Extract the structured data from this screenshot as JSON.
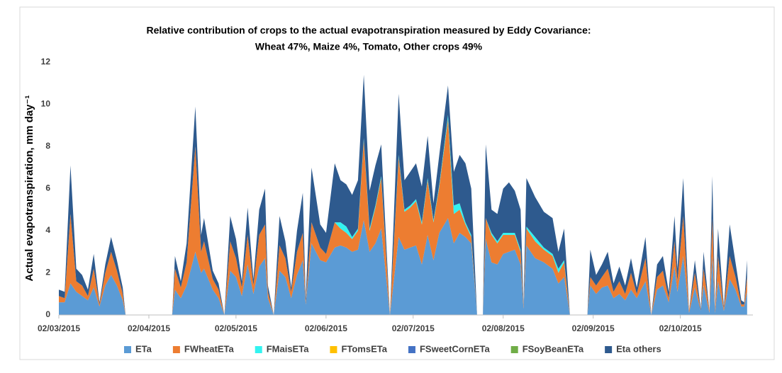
{
  "chart_data": {
    "type": "stacked_area",
    "title": "Relative contribution of crops to the actual evapotranspiration measured by Eddy Covariance:",
    "subtitle": "Wheat 47%, Maize 4%, Tomato, Other crops 49%",
    "ylabel": "Actual evapotranspiration, mm day⁻¹",
    "x": [
      "02/03/2015",
      "04/03/2015",
      "06/03/2015",
      "08/03/2015",
      "10/03/2015",
      "12/03/2015",
      "14/03/2015",
      "16/03/2015",
      "18/03/2015",
      "20/03/2015",
      "22/03/2015",
      "24/03/2015",
      "25/03/2015",
      "10/04/2015",
      "11/04/2015",
      "13/04/2015",
      "15/04/2015",
      "18/04/2015",
      "20/04/2015",
      "21/04/2015",
      "24/04/2015",
      "26/04/2015",
      "28/04/2015",
      "30/04/2015",
      "02/05/2015",
      "04/05/2015",
      "06/05/2015",
      "08/05/2015",
      "10/05/2015",
      "12/05/2015",
      "13/05/2015",
      "15/05/2015",
      "17/05/2015",
      "19/05/2015",
      "21/05/2015",
      "23/05/2015",
      "25/05/2015",
      "26/05/2015",
      "28/05/2015",
      "31/05/2015",
      "02/06/2015",
      "05/06/2015",
      "07/06/2015",
      "09/06/2015",
      "11/06/2015",
      "13/06/2015",
      "15/06/2015",
      "17/06/2015",
      "19/06/2015",
      "21/06/2015",
      "24/06/2015",
      "27/06/2015",
      "29/06/2015",
      "01/07/2015",
      "03/07/2015",
      "05/07/2015",
      "07/07/2015",
      "09/07/2015",
      "11/07/2015",
      "14/07/2015",
      "16/07/2015",
      "18/07/2015",
      "20/07/2015",
      "22/07/2015",
      "24/07/2015",
      "26/07/2015",
      "27/07/2015",
      "29/07/2015",
      "31/07/2015",
      "02/08/2015",
      "04/08/2015",
      "06/08/2015",
      "08/08/2015",
      "09/08/2015",
      "10/08/2015",
      "13/08/2015",
      "16/08/2015",
      "19/08/2015",
      "21/08/2015",
      "23/08/2015",
      "25/08/2015",
      "31/08/2015",
      "01/09/2015",
      "03/09/2015",
      "05/09/2015",
      "07/09/2015",
      "09/09/2015",
      "11/09/2015",
      "13/09/2015",
      "15/09/2015",
      "17/09/2015",
      "20/09/2015",
      "22/09/2015",
      "24/09/2015",
      "26/09/2015",
      "28/09/2015",
      "30/09/2015",
      "01/10/2015",
      "03/10/2015",
      "05/10/2015",
      "07/10/2015",
      "09/10/2015",
      "10/10/2015",
      "12/10/2015",
      "13/10/2015",
      "14/10/2015",
      "15/10/2015",
      "17/10/2015",
      "19/10/2015",
      "21/10/2015",
      "23/10/2015",
      "24/10/2015",
      "25/10/2015"
    ],
    "series": [
      {
        "name": "ETa",
        "color": "#5b9bd5",
        "values": [
          0.6,
          0.6,
          1.5,
          1.1,
          0.9,
          0.7,
          1.3,
          0.4,
          1.4,
          1.9,
          1.4,
          0.7,
          0,
          0,
          1.2,
          0.8,
          1.4,
          3.0,
          2.0,
          2.2,
          1.2,
          0.8,
          0,
          2.1,
          1.8,
          0.9,
          2.4,
          1.0,
          2.3,
          2.7,
          0.8,
          0,
          2.1,
          1.8,
          0.8,
          1.9,
          2.6,
          0.5,
          3.4,
          2.6,
          2.5,
          3.2,
          3.3,
          3.2,
          3.0,
          3.1,
          4.5,
          3.0,
          3.4,
          4.1,
          0,
          3.7,
          3.1,
          3.2,
          3.3,
          2.4,
          3.8,
          2.6,
          3.9,
          4.6,
          3.4,
          3.9,
          3.7,
          3.4,
          0,
          0,
          3.6,
          2.5,
          2.4,
          2.9,
          3.0,
          3.1,
          2.4,
          0.3,
          3.3,
          2.7,
          2.5,
          2.2,
          1.5,
          1.8,
          0,
          0,
          1.4,
          1.0,
          1.3,
          1.4,
          0.8,
          1.0,
          0.7,
          1.2,
          0.8,
          1.6,
          0,
          1.2,
          1.4,
          0.6,
          2.3,
          1.1,
          2.8,
          0.1,
          1.3,
          0.2,
          1.4,
          0.1,
          2.8,
          0.1,
          1.6,
          0.2,
          1.7,
          1.2,
          0.4,
          0.4,
          1.1
        ]
      },
      {
        "name": "FWheatETa",
        "color": "#ed7d31",
        "values": [
          0.3,
          0.2,
          3.3,
          0.5,
          0.5,
          0.2,
          0.9,
          0.1,
          0.6,
          1.1,
          0.7,
          0.3,
          0,
          0,
          1.0,
          0.5,
          1.1,
          5.0,
          1.0,
          1.3,
          0.5,
          0.4,
          0,
          1.4,
          0.9,
          0.4,
          1.4,
          0.4,
          1.5,
          1.6,
          0.3,
          0,
          1.2,
          0.9,
          0.3,
          1.1,
          1.3,
          0.1,
          1.0,
          0.6,
          0.4,
          1.2,
          0.8,
          0.7,
          0.6,
          0.9,
          3.8,
          1.0,
          1.7,
          2.4,
          0,
          3.8,
          1.8,
          1.9,
          2.1,
          1.9,
          2.6,
          1.8,
          2.2,
          4.7,
          1.4,
          1.1,
          0.6,
          0.3,
          0,
          0,
          1.0,
          1.3,
          1.0,
          0.9,
          0.8,
          0.7,
          0.6,
          0.1,
          0.8,
          0.8,
          0.6,
          0.6,
          0.5,
          0.7,
          0,
          0,
          0.4,
          0.4,
          0.5,
          0.8,
          0.3,
          0.6,
          0.3,
          0.8,
          0.2,
          1.1,
          0,
          0.6,
          0.7,
          0.2,
          1.2,
          0.5,
          1.9,
          0.1,
          0.7,
          0,
          0.8,
          0.1,
          1.8,
          0.1,
          1.2,
          0.1,
          1.1,
          0.6,
          0.1,
          0.1,
          0.7
        ]
      },
      {
        "name": "FMaisETa",
        "color": "#33f3f0",
        "values": [
          0,
          0,
          0,
          0,
          0,
          0,
          0,
          0,
          0,
          0,
          0,
          0,
          0,
          0,
          0,
          0,
          0,
          0,
          0,
          0,
          0,
          0,
          0,
          0,
          0,
          0,
          0,
          0,
          0,
          0,
          0,
          0,
          0,
          0,
          0,
          0,
          0,
          0,
          0,
          0,
          0,
          0,
          0.3,
          0.3,
          0.1,
          0.1,
          0.1,
          0.1,
          0.1,
          0.1,
          0,
          0.1,
          0.1,
          0.1,
          0.1,
          0.1,
          0.1,
          0.1,
          0.1,
          0.2,
          0.4,
          0.3,
          0.1,
          0.1,
          0,
          0,
          0,
          0.1,
          0.1,
          0.1,
          0.1,
          0.1,
          0.1,
          0,
          0.1,
          0.2,
          0.1,
          0.1,
          0.2,
          0.1,
          0,
          0,
          0,
          0,
          0,
          0,
          0,
          0,
          0,
          0,
          0,
          0,
          0,
          0,
          0,
          0,
          0,
          0,
          0,
          0,
          0,
          0,
          0,
          0,
          0,
          0,
          0,
          0,
          0,
          0,
          0,
          0,
          0
        ]
      },
      {
        "name": "FTomsETa",
        "color": "#ffc000",
        "values": [
          0,
          0,
          0,
          0,
          0,
          0,
          0,
          0,
          0,
          0,
          0,
          0,
          0,
          0,
          0,
          0,
          0,
          0,
          0,
          0,
          0,
          0,
          0,
          0,
          0,
          0,
          0,
          0,
          0,
          0,
          0,
          0,
          0,
          0,
          0,
          0,
          0,
          0,
          0,
          0,
          0,
          0,
          0,
          0,
          0,
          0,
          0,
          0,
          0,
          0,
          0,
          0,
          0,
          0,
          0,
          0,
          0,
          0,
          0,
          0,
          0,
          0,
          0,
          0,
          0,
          0,
          0,
          0,
          0,
          0,
          0,
          0,
          0,
          0,
          0,
          0,
          0,
          0,
          0,
          0,
          0,
          0,
          0,
          0,
          0,
          0,
          0,
          0,
          0,
          0,
          0,
          0,
          0,
          0,
          0,
          0,
          0,
          0,
          0,
          0,
          0,
          0,
          0,
          0,
          0,
          0,
          0,
          0,
          0,
          0,
          0,
          0,
          0
        ]
      },
      {
        "name": "FSweetCornETa",
        "color": "#4472c4",
        "values": [
          0,
          0,
          0,
          0,
          0,
          0,
          0,
          0,
          0,
          0,
          0,
          0,
          0,
          0,
          0,
          0,
          0,
          0,
          0,
          0,
          0,
          0,
          0,
          0,
          0,
          0,
          0,
          0,
          0,
          0,
          0,
          0,
          0,
          0,
          0,
          0,
          0,
          0,
          0,
          0,
          0,
          0,
          0,
          0,
          0,
          0,
          0,
          0,
          0,
          0,
          0,
          0,
          0,
          0,
          0,
          0,
          0,
          0,
          0,
          0,
          0,
          0,
          0,
          0,
          0,
          0,
          0,
          0,
          0,
          0,
          0,
          0,
          0,
          0,
          0,
          0,
          0,
          0,
          0,
          0,
          0,
          0,
          0,
          0,
          0,
          0,
          0,
          0,
          0,
          0,
          0,
          0,
          0,
          0,
          0,
          0,
          0,
          0,
          0,
          0,
          0,
          0,
          0,
          0,
          0,
          0,
          0,
          0,
          0,
          0,
          0,
          0,
          0
        ]
      },
      {
        "name": "FSoyBeanETa",
        "color": "#70ad47",
        "values": [
          0,
          0,
          0,
          0,
          0,
          0,
          0,
          0,
          0,
          0,
          0,
          0,
          0,
          0,
          0,
          0,
          0,
          0,
          0,
          0,
          0,
          0,
          0,
          0,
          0,
          0,
          0,
          0,
          0,
          0,
          0,
          0,
          0,
          0,
          0,
          0,
          0,
          0,
          0,
          0,
          0,
          0,
          0,
          0,
          0,
          0,
          0,
          0,
          0,
          0,
          0,
          0,
          0,
          0,
          0,
          0,
          0,
          0,
          0,
          0,
          0,
          0,
          0,
          0,
          0,
          0,
          0,
          0,
          0,
          0,
          0,
          0,
          0,
          0,
          0,
          0,
          0,
          0,
          0,
          0,
          0,
          0,
          0,
          0,
          0,
          0,
          0,
          0,
          0,
          0,
          0,
          0,
          0,
          0,
          0,
          0,
          0,
          0,
          0,
          0,
          0,
          0,
          0,
          0,
          0,
          0,
          0,
          0,
          0,
          0,
          0,
          0,
          0
        ]
      },
      {
        "name": "Eta others",
        "color": "#2e5a8e",
        "values": [
          0.3,
          0.3,
          2.3,
          0.6,
          0.5,
          0.3,
          0.7,
          0.1,
          0.4,
          0.7,
          0.5,
          0.3,
          0,
          0,
          0.6,
          0.3,
          0.9,
          1.9,
          0.8,
          1.1,
          0.4,
          0.3,
          0,
          1.2,
          0.9,
          0.3,
          1.3,
          0.3,
          1.2,
          1.7,
          0.3,
          0,
          1.4,
          0.8,
          0.2,
          1.0,
          1.9,
          0.2,
          2.6,
          1.1,
          1.0,
          2.8,
          2.0,
          2.0,
          2.0,
          2.3,
          3.0,
          1.8,
          1.9,
          1.5,
          0,
          2.9,
          1.4,
          1.6,
          1.7,
          1.7,
          2.0,
          0.8,
          1.4,
          1.4,
          1.6,
          2.3,
          2.8,
          2.2,
          0,
          0,
          3.5,
          1.1,
          1.3,
          2.1,
          2.4,
          2.0,
          1.9,
          0.1,
          2.3,
          1.9,
          1.7,
          1.7,
          0.8,
          1.5,
          0,
          0,
          1.3,
          0.5,
          0.6,
          0.8,
          0.4,
          0.7,
          0.4,
          0.7,
          0.3,
          1.0,
          0,
          0.6,
          0.7,
          0.3,
          1.2,
          0.6,
          1.8,
          0,
          0.6,
          0.1,
          0.8,
          0,
          2.0,
          0.1,
          1.3,
          0.1,
          1.5,
          0.7,
          0.2,
          0.1,
          0.8
        ]
      }
    ],
    "xlim": [
      "02/03/2015",
      "27/10/2015"
    ],
    "xticks": [
      "02/03/2015",
      "02/04/2015",
      "02/05/2015",
      "02/06/2015",
      "02/07/2015",
      "02/08/2015",
      "02/09/2015",
      "02/10/2015"
    ],
    "ylim": [
      0,
      12
    ],
    "yticks": [
      0,
      2,
      4,
      6,
      8,
      10,
      12
    ],
    "grid": false,
    "legend": "bottom"
  }
}
